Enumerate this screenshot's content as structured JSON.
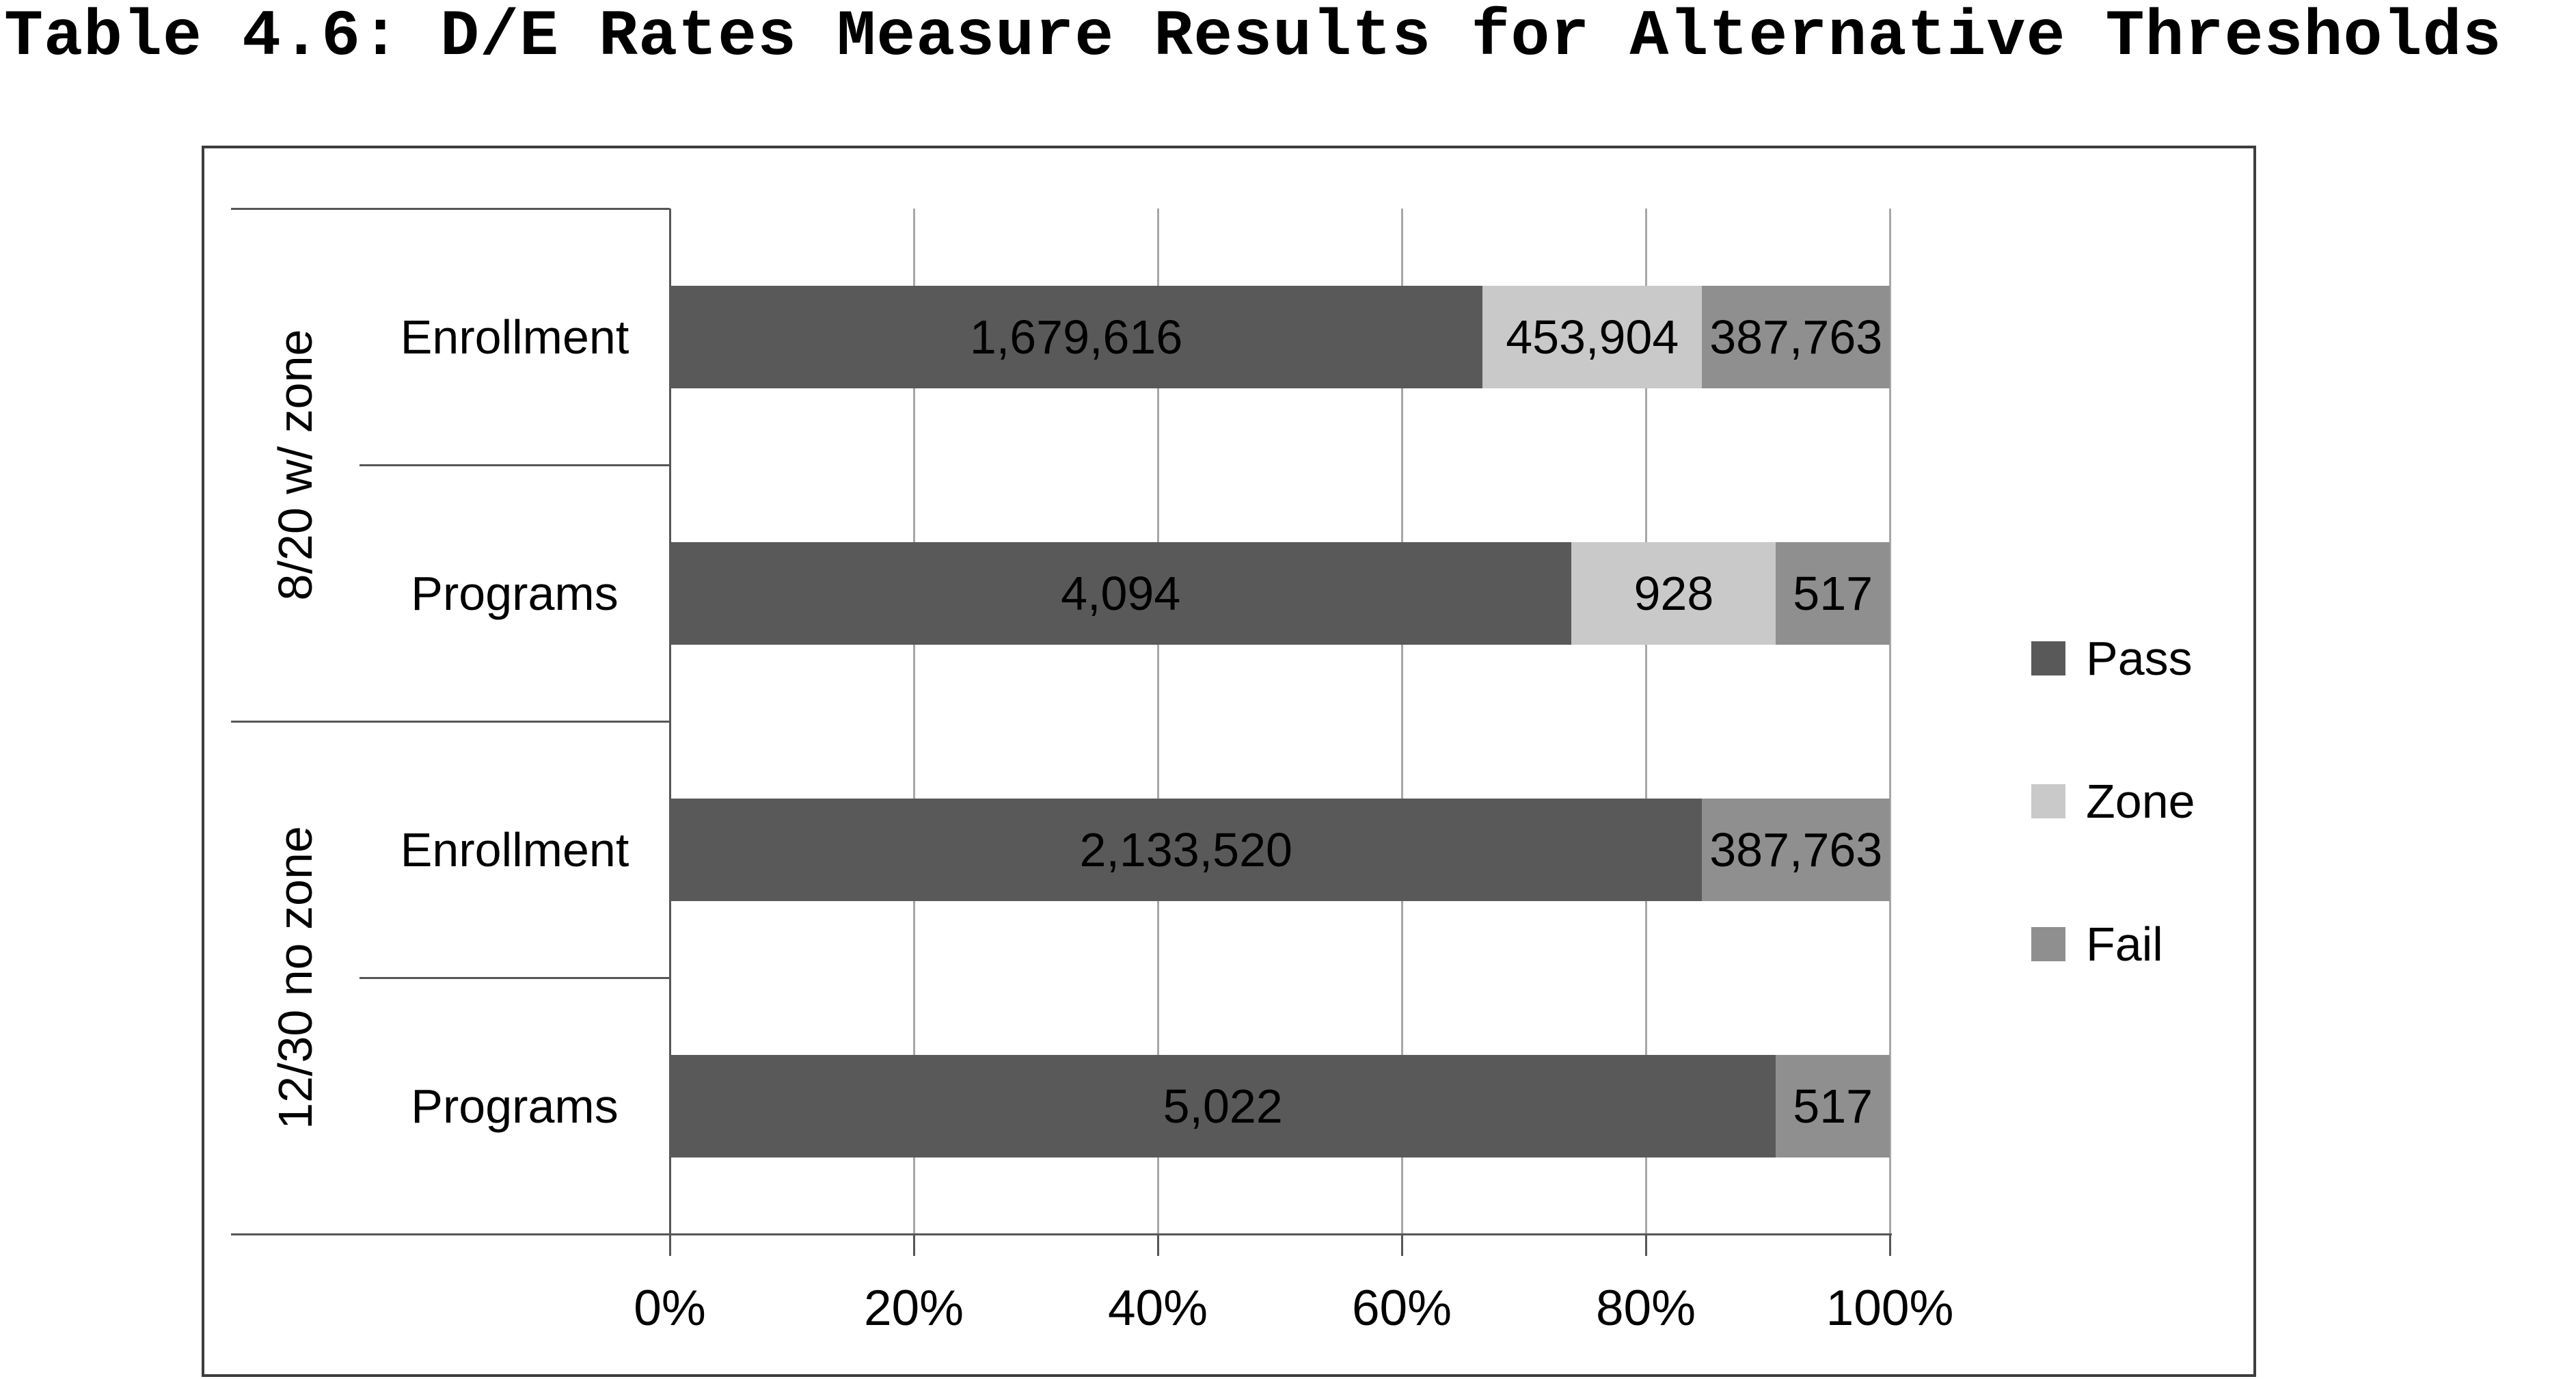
{
  "title": "Table 4.6: D/E Rates Measure Results for Alternative Thresholds",
  "chart_data": {
    "type": "bar",
    "orientation": "horizontal",
    "stacked": true,
    "normalized": "percent-of-row-total",
    "title": "Table 4.6: D/E Rates Measure Results for Alternative Thresholds",
    "series_names": [
      "Pass",
      "Zone",
      "Fail"
    ],
    "series_colors": {
      "Pass": "#595959",
      "Zone": "#c9c9c9",
      "Fail": "#8f8f8f"
    },
    "groups": [
      {
        "label": "8/20 w/ zone",
        "rows": [
          {
            "category": "Enrollment",
            "segments": [
              {
                "series": "Pass",
                "value": 1679616,
                "label": "1,679,616"
              },
              {
                "series": "Zone",
                "value": 453904,
                "label": "453,904"
              },
              {
                "series": "Fail",
                "value": 387763,
                "label": "387,763"
              }
            ]
          },
          {
            "category": "Programs",
            "segments": [
              {
                "series": "Pass",
                "value": 4094,
                "label": "4,094"
              },
              {
                "series": "Zone",
                "value": 928,
                "label": "928"
              },
              {
                "series": "Fail",
                "value": 517,
                "label": "517"
              }
            ]
          }
        ]
      },
      {
        "label": "12/30 no zone",
        "rows": [
          {
            "category": "Enrollment",
            "segments": [
              {
                "series": "Pass",
                "value": 2133520,
                "label": "2,133,520"
              },
              {
                "series": "Fail",
                "value": 387763,
                "label": "387,763"
              }
            ]
          },
          {
            "category": "Programs",
            "segments": [
              {
                "series": "Pass",
                "value": 5022,
                "label": "5,022"
              },
              {
                "series": "Fail",
                "value": 517,
                "label": "517"
              }
            ]
          }
        ]
      }
    ],
    "x_tick_labels": [
      "0%",
      "20%",
      "40%",
      "60%",
      "80%",
      "100%"
    ],
    "xlim": [
      0,
      100
    ],
    "grid": true,
    "legend_position": "right-middle",
    "legend": [
      "Pass",
      "Zone",
      "Fail"
    ]
  }
}
